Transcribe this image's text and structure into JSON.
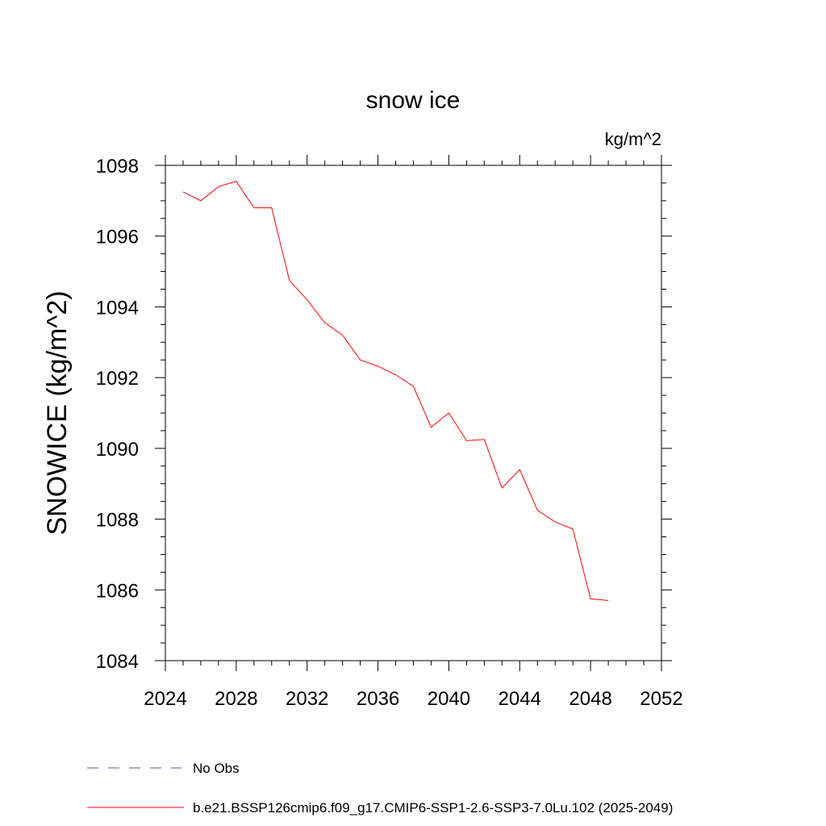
{
  "chart_data": {
    "type": "line",
    "title": "snow ice",
    "units": "kg/m^2",
    "ylabel": "SNOWICE  (kg/m^2)",
    "xlabel": "",
    "xlim": [
      2024,
      2052
    ],
    "ylim": [
      1084,
      1098
    ],
    "x_ticks": [
      2024,
      2028,
      2032,
      2036,
      2040,
      2044,
      2048,
      2052
    ],
    "y_ticks": [
      1084,
      1086,
      1088,
      1090,
      1092,
      1094,
      1096,
      1098
    ],
    "grid": false,
    "legend_placement": "bottom",
    "series": [
      {
        "name": "b.e21.BSSP126cmip6.f09_g17.CMIP6-SSP1-2.6-SSP3-7.0Lu.102 (2025-2049)",
        "color": "#ff0000",
        "style": "solid",
        "x": [
          2025,
          2026,
          2027,
          2028,
          2029,
          2030,
          2031,
          2032,
          2033,
          2034,
          2035,
          2036,
          2037,
          2038,
          2039,
          2040,
          2041,
          2042,
          2043,
          2044,
          2045,
          2046,
          2047,
          2048,
          2049
        ],
        "values": [
          1097.25,
          1097.0,
          1097.4,
          1097.55,
          1096.8,
          1096.8,
          1094.75,
          1094.2,
          1093.55,
          1093.2,
          1092.5,
          1092.32,
          1092.08,
          1091.75,
          1090.6,
          1091.0,
          1090.22,
          1090.25,
          1088.88,
          1089.4,
          1088.25,
          1087.92,
          1087.72,
          1085.75,
          1085.7
        ]
      },
      {
        "name": "No Obs",
        "color": "#5555aa",
        "style": "dashed",
        "x": [],
        "values": []
      }
    ]
  }
}
